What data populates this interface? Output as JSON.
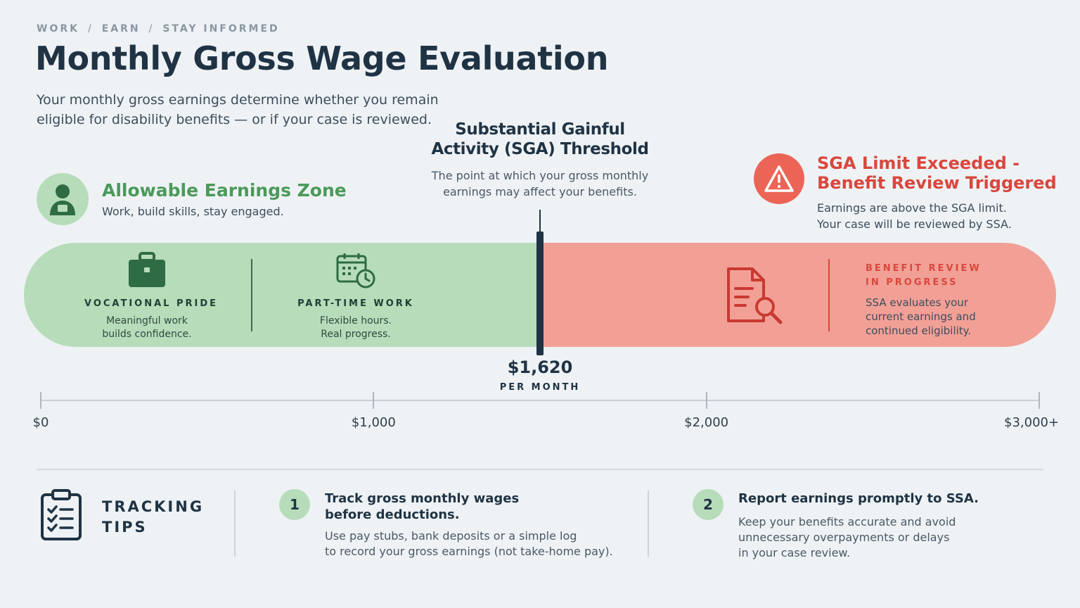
{
  "breadcrumb": [
    "WORK",
    "EARN",
    "STAY INFORMED"
  ],
  "title": "Monthly Gross Wage Evaluation",
  "subtitle": "Your monthly gross earnings determine whether you remain eligible for disability benefits — or if your case is reviewed.",
  "threshold": {
    "title": "Substantial Gainful Activity (SGA) Threshold",
    "description": "The point at which your gross monthly earnings may affect your benefits.",
    "value_label": "$1,620",
    "unit_label": "PER MONTH",
    "value": 1620
  },
  "allowable_zone": {
    "title": "Allowable Earnings Zone",
    "description": "Work, build skills, stay engaged.",
    "icon": "person-icon",
    "color": "#4b9a5a",
    "items": [
      {
        "icon": "briefcase-icon",
        "label": "VOCATIONAL PRIDE",
        "desc1": "Meaningful work",
        "desc2": "builds confidence."
      },
      {
        "icon": "calendar-clock-icon",
        "label": "PART-TIME WORK",
        "desc1": "Flexible hours.",
        "desc2": "Real progress."
      }
    ]
  },
  "exceeded_zone": {
    "title_line1": "SGA Limit Exceeded -",
    "title_line2": "Benefit Review Triggered",
    "desc_line1": "Earnings are above the SGA limit.",
    "desc_line2": "Your case will be reviewed by SSA.",
    "icon": "warning-icon",
    "color": "#d9473d",
    "review_icon": "document-search-icon",
    "review_label_line1": "BENEFIT REVIEW",
    "review_label_line2": "IN PROGRESS",
    "review_desc": "SSA evaluates your current earnings and continued eligibility."
  },
  "axis": {
    "min": 0,
    "max": 3000,
    "ticks": [
      {
        "value": 0,
        "label": "$0"
      },
      {
        "value": 1000,
        "label": "$1,000"
      },
      {
        "value": 2000,
        "label": "$2,000"
      },
      {
        "value": 3000,
        "label": "$3,000+"
      }
    ]
  },
  "tips": {
    "heading_line1": "TRACKING",
    "heading_line2": "TIPS",
    "icon": "clipboard-checklist-icon",
    "items": [
      {
        "number": "1",
        "title_line1": "Track gross monthly wages",
        "title_line2": "before deductions.",
        "desc_line1": "Use pay stubs, bank deposits or a simple log",
        "desc_line2": "to record your gross earnings (not take-home pay)."
      },
      {
        "number": "2",
        "title_line1": "Report earnings promptly to SSA.",
        "desc_line1": "Keep your benefits accurate and avoid",
        "desc_line2": "unnecessary overpayments or delays",
        "desc_line3": "in your case review."
      }
    ]
  }
}
